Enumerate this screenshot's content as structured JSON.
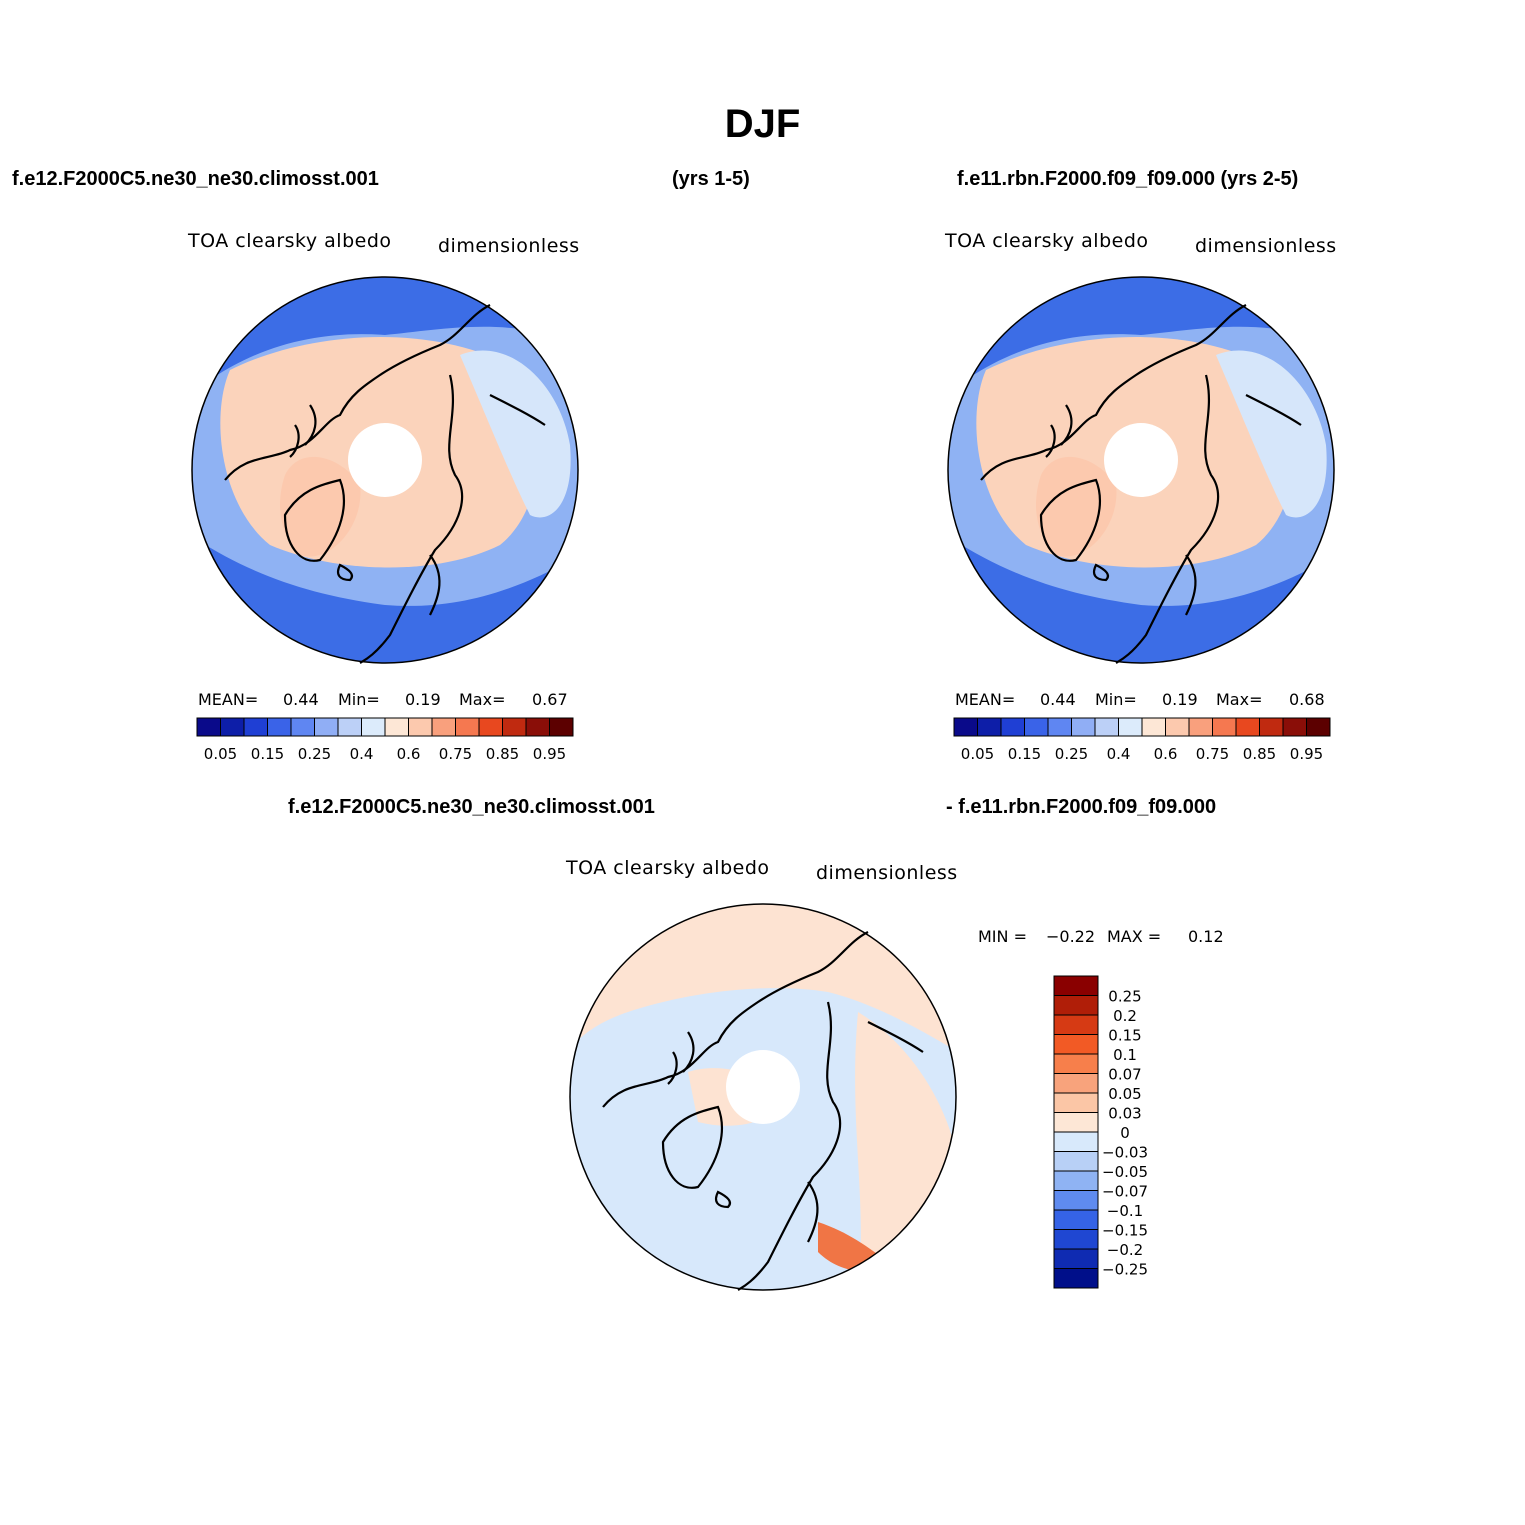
{
  "title": "DJF",
  "headers": {
    "case1": "f.e12.F2000C5.ne30_ne30.climosst.001",
    "case1_years": "(yrs 1-5)",
    "case2": "f.e11.rbn.F2000.f09_f09.000 (yrs 2-5)",
    "diff_case1": "f.e12.F2000C5.ne30_ne30.climosst.001",
    "diff_case2": "- f.e11.rbn.F2000.f09_f09.000"
  },
  "panels": [
    {
      "id": "case1",
      "variable": "TOA clearsky albedo",
      "units": "dimensionless",
      "stats": {
        "mean_label": "MEAN=",
        "mean": "0.44",
        "min_label": "Min=",
        "min": "0.19",
        "max_label": "Max=",
        "max": "0.67"
      }
    },
    {
      "id": "case2",
      "variable": "TOA clearsky albedo",
      "units": "dimensionless",
      "stats": {
        "mean_label": "MEAN=",
        "mean": "0.44",
        "min_label": "Min=",
        "min": "0.19",
        "max_label": "Max=",
        "max": "0.68"
      }
    },
    {
      "id": "difference",
      "variable": "TOA clearsky albedo",
      "units": "dimensionless",
      "stats": {
        "min_label": "MIN =",
        "min": "−0.22",
        "max_label": "MAX =",
        "max": "0.12"
      }
    }
  ],
  "colorbars": {
    "albedo": {
      "colors": [
        "#0a0a8a",
        "#0d1ea8",
        "#1f3fd4",
        "#3a63e8",
        "#5f86f2",
        "#90aef5",
        "#bcd0f7",
        "#dcebfb",
        "#fde7d6",
        "#fcc9ae",
        "#f9a07d",
        "#f57850",
        "#e8481f",
        "#c02a10",
        "#8a0e08",
        "#5c0000"
      ],
      "tick_labels": [
        "0.05",
        "0.15",
        "0.25",
        "0.4",
        "0.6",
        "0.75",
        "0.85",
        "0.95"
      ]
    },
    "difference": {
      "colors": [
        "#8a0000",
        "#b01e08",
        "#d63a14",
        "#f25a25",
        "#f77f4b",
        "#f8a37c",
        "#fbc6a6",
        "#fde7d6",
        "#d8e9fb",
        "#b8d0f6",
        "#8fb3f3",
        "#5f8bef",
        "#3563e6",
        "#1f47d2",
        "#0f2bb2",
        "#000f8a"
      ],
      "tick_labels": [
        "0.25",
        "0.2",
        "0.15",
        "0.1",
        "0.07",
        "0.05",
        "0.03",
        "0",
        "−0.03",
        "−0.05",
        "−0.07",
        "−0.1",
        "−0.15",
        "−0.2",
        "−0.25"
      ]
    }
  },
  "colors": {
    "land_high_albedo": "#fbd3bb",
    "ocean_low_albedo": "#3c6de6",
    "mid_albedo": "#8fb2f3",
    "pale_blue": "#d6e6fa",
    "diff_positive": "#fde3d2",
    "diff_negative": "#d7e8fb",
    "diff_strong_positive": "#f07545"
  }
}
